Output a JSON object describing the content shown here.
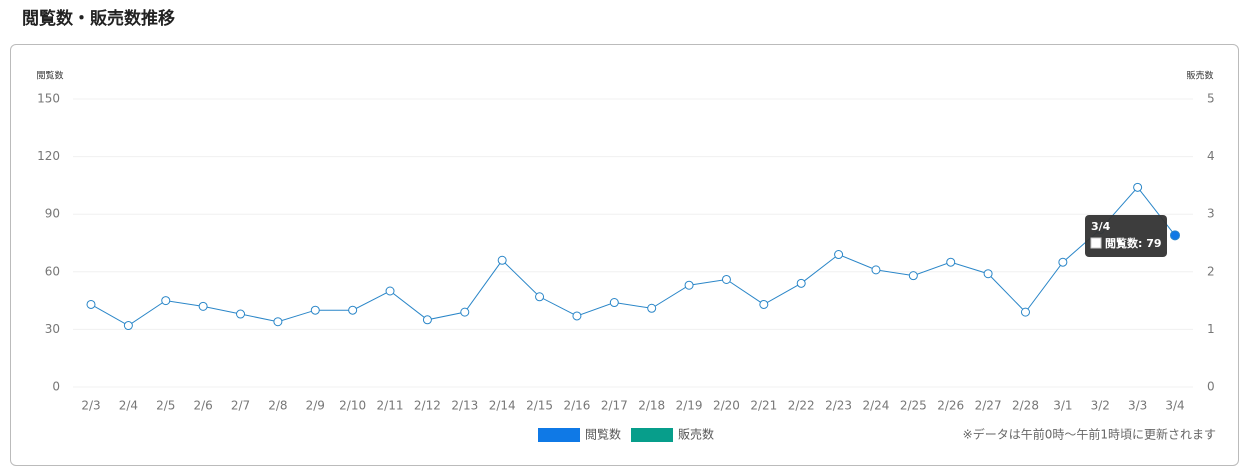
{
  "page_title": "閲覧数・販売数推移",
  "chart_data": {
    "type": "line",
    "y_axis_label": "閲覧数",
    "y2_axis_label": "販売数",
    "categories": [
      "2/3",
      "2/4",
      "2/5",
      "2/6",
      "2/7",
      "2/8",
      "2/9",
      "2/10",
      "2/11",
      "2/12",
      "2/13",
      "2/14",
      "2/15",
      "2/16",
      "2/17",
      "2/18",
      "2/19",
      "2/20",
      "2/21",
      "2/22",
      "2/23",
      "2/24",
      "2/25",
      "2/26",
      "2/27",
      "2/28",
      "3/1",
      "3/2",
      "3/3",
      "3/4"
    ],
    "series": [
      {
        "name": "閲覧数",
        "color": "#0f79e6",
        "line_color": "#2a86c8",
        "values": [
          43,
          32,
          45,
          42,
          38,
          34,
          40,
          40,
          50,
          35,
          39,
          66,
          47,
          37,
          44,
          41,
          53,
          56,
          43,
          54,
          69,
          61,
          58,
          65,
          59,
          39,
          65,
          82,
          104,
          79
        ]
      },
      {
        "name": "販売数",
        "color": "#079e8b",
        "axis": "y2",
        "values": [
          null,
          null,
          null,
          null,
          null,
          null,
          null,
          null,
          null,
          null,
          null,
          null,
          null,
          null,
          null,
          null,
          null,
          null,
          null,
          null,
          null,
          null,
          null,
          null,
          null,
          null,
          null,
          null,
          null,
          null
        ]
      }
    ],
    "ylim": [
      0,
      150
    ],
    "yticks": [
      0,
      30,
      60,
      90,
      120,
      150
    ],
    "y2lim": [
      0,
      5
    ],
    "y2ticks": [
      0,
      1,
      2,
      3,
      4,
      5
    ],
    "grid": true,
    "tooltip": {
      "title": "3/4",
      "text": "閲覧数: 79"
    },
    "note": "※データは午前0時〜午前1時頃に更新されます"
  }
}
